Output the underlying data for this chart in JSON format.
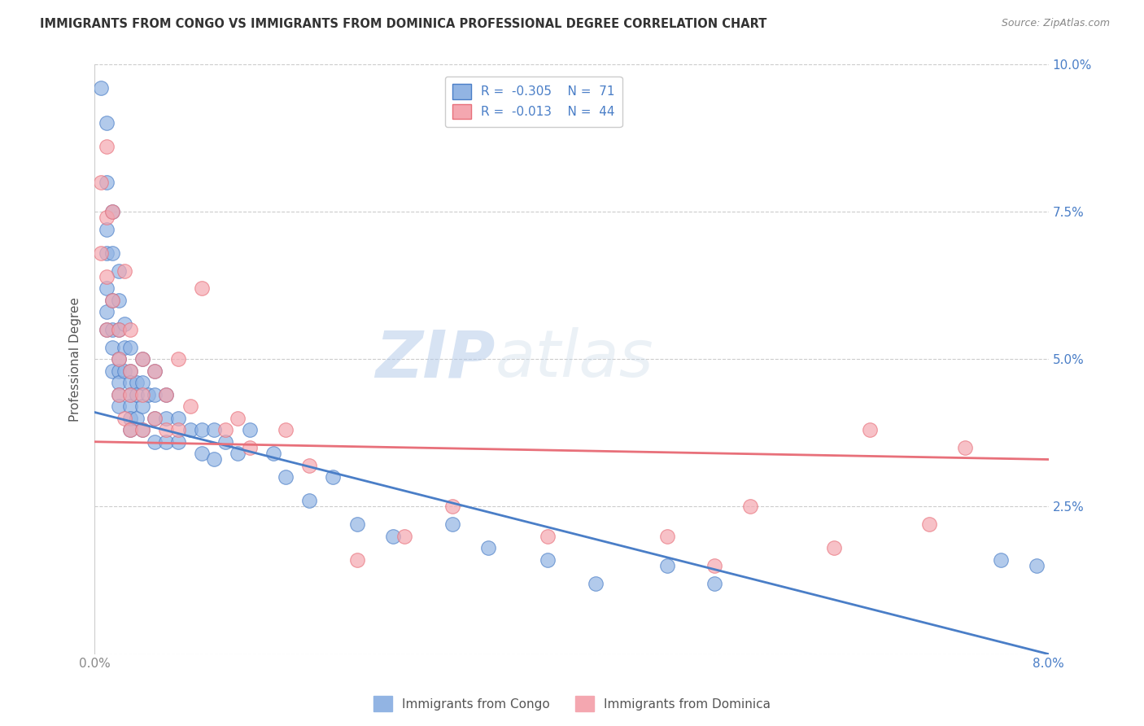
{
  "title": "IMMIGRANTS FROM CONGO VS IMMIGRANTS FROM DOMINICA PROFESSIONAL DEGREE CORRELATION CHART",
  "source": "Source: ZipAtlas.com",
  "ylabel": "Professional Degree",
  "xmin": 0.0,
  "xmax": 0.08,
  "ymin": 0.0,
  "ymax": 0.1,
  "xticks": [
    0.0,
    0.01,
    0.02,
    0.03,
    0.04,
    0.05,
    0.06,
    0.07,
    0.08
  ],
  "yticks": [
    0.0,
    0.025,
    0.05,
    0.075,
    0.1
  ],
  "xtick_labels": [
    "0.0%",
    "",
    "",
    "",
    "",
    "",
    "",
    "",
    "8.0%"
  ],
  "ytick_labels": [
    "",
    "2.5%",
    "5.0%",
    "7.5%",
    "10.0%"
  ],
  "congo_R": -0.305,
  "congo_N": 71,
  "dominica_R": -0.013,
  "dominica_N": 44,
  "congo_color": "#92b4e3",
  "dominica_color": "#f4a7b0",
  "congo_line_color": "#4a7ec7",
  "dominica_line_color": "#e8707a",
  "legend_label_congo": "Immigrants from Congo",
  "legend_label_dominica": "Immigrants from Dominica",
  "watermark_zip": "ZIP",
  "watermark_atlas": "atlas",
  "background_color": "#ffffff",
  "grid_color": "#cccccc",
  "congo_x": [
    0.0005,
    0.001,
    0.001,
    0.001,
    0.001,
    0.001,
    0.001,
    0.001,
    0.0015,
    0.0015,
    0.0015,
    0.0015,
    0.0015,
    0.0015,
    0.002,
    0.002,
    0.002,
    0.002,
    0.002,
    0.002,
    0.002,
    0.002,
    0.0025,
    0.0025,
    0.0025,
    0.003,
    0.003,
    0.003,
    0.003,
    0.003,
    0.003,
    0.003,
    0.0035,
    0.0035,
    0.0035,
    0.004,
    0.004,
    0.004,
    0.004,
    0.0045,
    0.005,
    0.005,
    0.005,
    0.005,
    0.006,
    0.006,
    0.006,
    0.007,
    0.007,
    0.008,
    0.009,
    0.009,
    0.01,
    0.01,
    0.011,
    0.012,
    0.013,
    0.015,
    0.016,
    0.018,
    0.02,
    0.022,
    0.025,
    0.03,
    0.033,
    0.038,
    0.042,
    0.048,
    0.052,
    0.076,
    0.079
  ],
  "congo_y": [
    0.096,
    0.09,
    0.08,
    0.072,
    0.068,
    0.062,
    0.058,
    0.055,
    0.075,
    0.068,
    0.06,
    0.055,
    0.052,
    0.048,
    0.065,
    0.06,
    0.055,
    0.05,
    0.048,
    0.046,
    0.044,
    0.042,
    0.056,
    0.052,
    0.048,
    0.052,
    0.048,
    0.046,
    0.044,
    0.042,
    0.04,
    0.038,
    0.046,
    0.044,
    0.04,
    0.05,
    0.046,
    0.042,
    0.038,
    0.044,
    0.048,
    0.044,
    0.04,
    0.036,
    0.044,
    0.04,
    0.036,
    0.04,
    0.036,
    0.038,
    0.038,
    0.034,
    0.038,
    0.033,
    0.036,
    0.034,
    0.038,
    0.034,
    0.03,
    0.026,
    0.03,
    0.022,
    0.02,
    0.022,
    0.018,
    0.016,
    0.012,
    0.015,
    0.012,
    0.016,
    0.015
  ],
  "dominica_x": [
    0.0005,
    0.0005,
    0.001,
    0.001,
    0.001,
    0.001,
    0.0015,
    0.0015,
    0.002,
    0.002,
    0.002,
    0.0025,
    0.0025,
    0.003,
    0.003,
    0.003,
    0.003,
    0.004,
    0.004,
    0.004,
    0.005,
    0.005,
    0.006,
    0.006,
    0.007,
    0.007,
    0.008,
    0.009,
    0.011,
    0.012,
    0.013,
    0.016,
    0.018,
    0.022,
    0.026,
    0.03,
    0.038,
    0.048,
    0.052,
    0.055,
    0.062,
    0.065,
    0.07,
    0.073
  ],
  "dominica_y": [
    0.08,
    0.068,
    0.086,
    0.074,
    0.064,
    0.055,
    0.075,
    0.06,
    0.055,
    0.05,
    0.044,
    0.065,
    0.04,
    0.055,
    0.048,
    0.044,
    0.038,
    0.05,
    0.044,
    0.038,
    0.048,
    0.04,
    0.044,
    0.038,
    0.05,
    0.038,
    0.042,
    0.062,
    0.038,
    0.04,
    0.035,
    0.038,
    0.032,
    0.016,
    0.02,
    0.025,
    0.02,
    0.02,
    0.015,
    0.025,
    0.018,
    0.038,
    0.022,
    0.035
  ],
  "congo_line_x": [
    0.0,
    0.08
  ],
  "congo_line_y": [
    0.041,
    0.0
  ],
  "dominica_line_x": [
    0.0,
    0.08
  ],
  "dominica_line_y": [
    0.036,
    0.033
  ]
}
